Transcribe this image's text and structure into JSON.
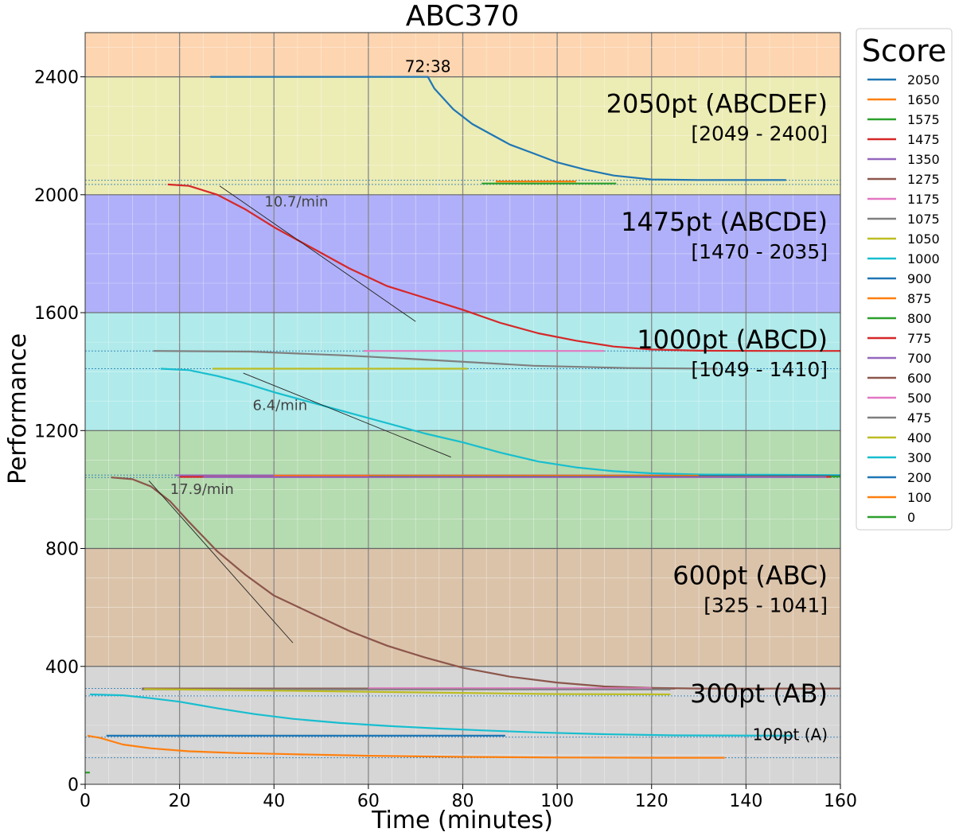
{
  "chart_data": {
    "type": "line",
    "title": "ABC370",
    "xlabel": "Time (minutes)",
    "ylabel": "Performance",
    "xlim": [
      0,
      160
    ],
    "ylim": [
      0,
      2550
    ],
    "x_ticks": [
      "0",
      "20",
      "40",
      "60",
      "80",
      "100",
      "120",
      "140",
      "160"
    ],
    "y_ticks": [
      "0",
      "400",
      "800",
      "1200",
      "1600",
      "2000",
      "2400"
    ],
    "grid": true,
    "legend_title": "Score",
    "legend_position": "outside right",
    "bands": [
      {
        "from": 0,
        "to": 400,
        "color": "#d6d6d6"
      },
      {
        "from": 400,
        "to": 800,
        "color": "#dbc3aa"
      },
      {
        "from": 800,
        "to": 1200,
        "color": "#b5dbb0"
      },
      {
        "from": 1200,
        "to": 1600,
        "color": "#b0eaea"
      },
      {
        "from": 1600,
        "to": 2000,
        "color": "#b0b0fa"
      },
      {
        "from": 2000,
        "to": 2400,
        "color": "#ececb5"
      },
      {
        "from": 2400,
        "to": 2550,
        "color": "#fdd5b0"
      }
    ],
    "band_labels": [
      {
        "name": "2050pt (ABCDEF)",
        "range": "[2049 - 2400]",
        "y": 2400
      },
      {
        "name": "1475pt (ABCDE)",
        "range": "[1470 - 2035]",
        "y": 2000
      },
      {
        "name": "1000pt (ABCD)",
        "range": "[1049 - 1410]",
        "y": 1600
      },
      {
        "name": "600pt (ABC)",
        "range": "[325 - 1041]",
        "y": 800
      },
      {
        "name": "300pt (AB)",
        "range": "",
        "y": 400
      },
      {
        "name": "100pt (A)",
        "range": "",
        "y": 160
      }
    ],
    "reference_lines": [
      2049,
      2035,
      1470,
      1410,
      1049,
      1041,
      325,
      300,
      160,
      90
    ],
    "annotations": [
      {
        "text": "72:38",
        "x": 72.6,
        "y": 2400
      },
      {
        "text": "10.7/min",
        "x": 38,
        "y": 1960
      },
      {
        "text": "6.4/min",
        "x": 35.5,
        "y": 1270
      },
      {
        "text": "17.9/min",
        "x": 18,
        "y": 985
      }
    ],
    "slope_lines": [
      {
        "x1": 28.5,
        "y1": 2030,
        "x2": 70,
        "y2": 1570
      },
      {
        "x1": 33.5,
        "y1": 1395,
        "x2": 77.5,
        "y2": 1110
      },
      {
        "x1": 13.5,
        "y1": 1030,
        "x2": 44,
        "y2": 480
      }
    ],
    "series": [
      {
        "name": "2050",
        "color": "#1f77b4",
        "x": [
          26.5,
          72.6,
          74,
          78,
          82,
          86,
          90,
          95,
          100,
          106,
          112,
          120,
          130,
          148.5
        ],
        "y": [
          2400,
          2400,
          2360,
          2290,
          2240,
          2205,
          2170,
          2140,
          2110,
          2085,
          2065,
          2052,
          2050,
          2050
        ]
      },
      {
        "name": "1650",
        "color": "#ff7f0e",
        "x": [
          87,
          104
        ],
        "y": [
          2045,
          2045
        ]
      },
      {
        "name": "1575",
        "color": "#2ca02c",
        "x": [
          84,
          112.5
        ],
        "y": [
          2038,
          2038
        ]
      },
      {
        "name": "1475",
        "color": "#d62728",
        "x": [
          17.5,
          22,
          28,
          34,
          40,
          48,
          56,
          64,
          72,
          80,
          88,
          96,
          104,
          112,
          120,
          130,
          145,
          160
        ],
        "y": [
          2035,
          2030,
          2000,
          1950,
          1890,
          1820,
          1750,
          1690,
          1650,
          1610,
          1565,
          1530,
          1505,
          1485,
          1475,
          1471,
          1470,
          1470
        ]
      },
      {
        "name": "1350",
        "color": "#9467bd",
        "x": [
          19,
          160
        ],
        "y": [
          1048,
          1048
        ]
      },
      {
        "name": "1275",
        "color": "#8c564b",
        "x": [
          5.5,
          10,
          14,
          18,
          22,
          28,
          34,
          40,
          48,
          56,
          64,
          72,
          80,
          90,
          100,
          110,
          120,
          130,
          145,
          160
        ],
        "y": [
          1041,
          1035,
          1010,
          960,
          890,
          790,
          710,
          640,
          580,
          520,
          470,
          430,
          395,
          365,
          345,
          332,
          327,
          325,
          325,
          325
        ]
      },
      {
        "name": "1175",
        "color": "#e377c2",
        "x": [
          59,
          110
        ],
        "y": [
          1470,
          1470
        ]
      },
      {
        "name": "1075",
        "color": "#7f7f7f",
        "x": [
          14.5,
          35,
          55,
          75,
          95,
          115,
          134
        ],
        "y": [
          1470,
          1468,
          1455,
          1438,
          1420,
          1412,
          1410
        ]
      },
      {
        "name": "1050",
        "color": "#bcbd22",
        "x": [
          27,
          81
        ],
        "y": [
          1410,
          1410
        ]
      },
      {
        "name": "1000",
        "color": "#17becf",
        "x": [
          16,
          22,
          28,
          34,
          40,
          48,
          56,
          64,
          72,
          80,
          88,
          96,
          104,
          112,
          120,
          130,
          145,
          160
        ],
        "y": [
          1410,
          1405,
          1385,
          1360,
          1330,
          1295,
          1260,
          1225,
          1190,
          1160,
          1125,
          1095,
          1075,
          1062,
          1055,
          1051,
          1050,
          1049
        ]
      },
      {
        "name": "900",
        "color": "#1f77b4",
        "x": [
          55,
          160
        ],
        "y": [
          1046,
          1046
        ]
      },
      {
        "name": "875",
        "color": "#ff7f0e",
        "x": [
          40,
          130
        ],
        "y": [
          1047,
          1047
        ]
      },
      {
        "name": "800",
        "color": "#2ca02c",
        "x": [
          60,
          160
        ],
        "y": [
          1044,
          1044
        ]
      },
      {
        "name": "775",
        "color": "#d62728",
        "x": [
          20,
          158
        ],
        "y": [
          1043,
          1043
        ]
      },
      {
        "name": "700",
        "color": "#9467bd",
        "x": [
          25,
          157
        ],
        "y": [
          1042,
          1042
        ]
      },
      {
        "name": "600",
        "color": "#8c564b",
        "x": [
          12,
          125
        ],
        "y": [
          325,
          325
        ]
      },
      {
        "name": "500",
        "color": "#e377c2",
        "x": [
          60,
          120
        ],
        "y": [
          326,
          326
        ]
      },
      {
        "name": "475",
        "color": "#7f7f7f",
        "x": [
          12,
          124
        ],
        "y": [
          322,
          322
        ]
      },
      {
        "name": "400",
        "color": "#bcbd22",
        "x": [
          12.5,
          40,
          70,
          100,
          124
        ],
        "y": [
          323,
          318,
          312,
          306,
          305
        ]
      },
      {
        "name": "300",
        "color": "#17becf",
        "x": [
          1,
          8,
          14,
          20,
          28,
          36,
          44,
          54,
          64,
          74,
          84,
          96,
          110,
          125,
          150
        ],
        "y": [
          305,
          302,
          292,
          280,
          258,
          238,
          222,
          208,
          198,
          190,
          183,
          176,
          170,
          166,
          165
        ]
      },
      {
        "name": "200",
        "color": "#1f77b4",
        "x": [
          4.5,
          89
        ],
        "y": [
          165,
          165
        ]
      },
      {
        "name": "100",
        "color": "#ff7f0e",
        "x": [
          0.5,
          3,
          8,
          14,
          22,
          32,
          44,
          60,
          80,
          100,
          120,
          135.5
        ],
        "y": [
          165,
          158,
          135,
          122,
          112,
          106,
          102,
          97,
          93,
          91,
          90,
          90
        ]
      },
      {
        "name": "0",
        "color": "#2ca02c",
        "x": [
          0,
          1
        ],
        "y": [
          40,
          40
        ]
      }
    ]
  }
}
